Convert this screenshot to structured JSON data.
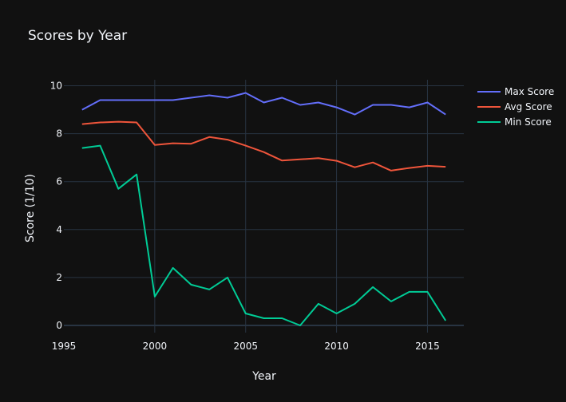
{
  "chart_data": {
    "type": "line",
    "title": "Scores by Year",
    "xlabel": "Year",
    "ylabel": "Score (1/10)",
    "xlim": [
      1995,
      2017
    ],
    "ylim": [
      -0.3,
      10.25
    ],
    "xticks": [
      1995,
      2000,
      2005,
      2010,
      2015
    ],
    "yticks": [
      0,
      2,
      4,
      6,
      8,
      10
    ],
    "grid": true,
    "legend_position": "top-right",
    "x": [
      1996,
      1997,
      1998,
      1999,
      2000,
      2001,
      2002,
      2003,
      2004,
      2005,
      2006,
      2007,
      2008,
      2009,
      2010,
      2011,
      2012,
      2013,
      2014,
      2015,
      2016
    ],
    "series": [
      {
        "name": "Max Score",
        "color": "#636efa",
        "values": [
          9.0,
          9.4,
          9.4,
          9.4,
          9.4,
          9.4,
          9.5,
          9.6,
          9.5,
          9.7,
          9.3,
          9.5,
          9.2,
          9.3,
          9.1,
          8.8,
          9.2,
          9.2,
          9.1,
          9.3,
          8.8
        ]
      },
      {
        "name": "Avg Score",
        "color": "#ef553b",
        "values": [
          8.4,
          8.47,
          8.5,
          8.47,
          7.53,
          7.6,
          7.58,
          7.86,
          7.75,
          7.5,
          7.23,
          6.88,
          6.93,
          6.98,
          6.87,
          6.6,
          6.8,
          6.46,
          6.57,
          6.66,
          6.62
        ]
      },
      {
        "name": "Min Score",
        "color": "#00cc96",
        "values": [
          7.4,
          7.5,
          5.7,
          6.3,
          1.2,
          2.4,
          1.7,
          1.5,
          2.0,
          0.5,
          0.3,
          0.3,
          0.0,
          0.9,
          0.5,
          0.9,
          1.6,
          1.0,
          1.4,
          1.4,
          0.2
        ]
      }
    ]
  }
}
